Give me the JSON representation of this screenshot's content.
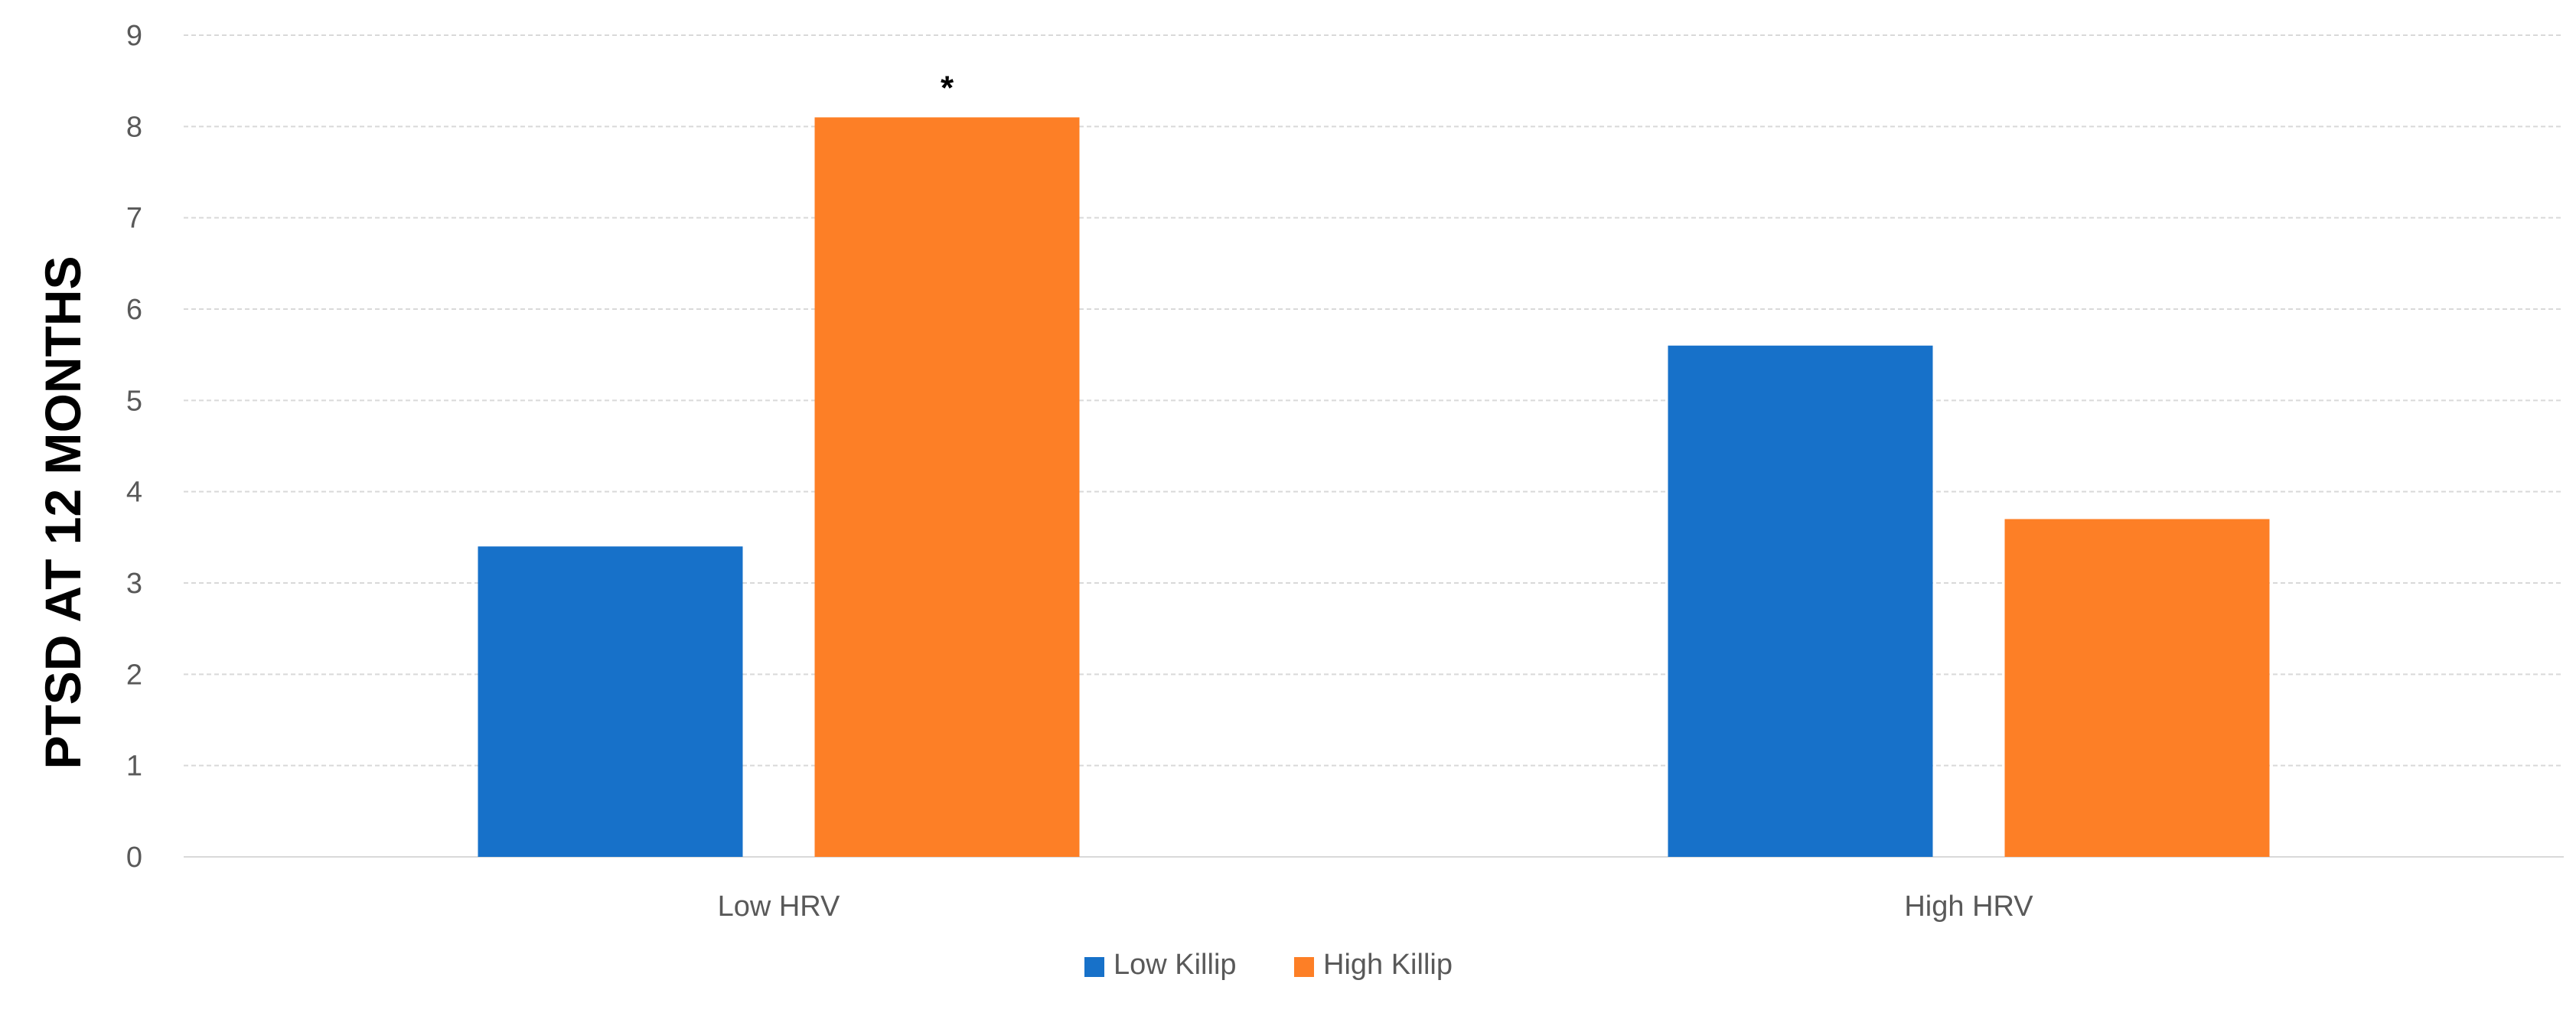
{
  "chart_data": {
    "type": "bar",
    "title": "",
    "xlabel": "",
    "ylabel": "PTSD AT 12 MONTHS",
    "categories": [
      "Low HRV",
      "High HRV"
    ],
    "series": [
      {
        "name": "Low Killip",
        "values": [
          3.4,
          5.6
        ],
        "color": "#1771c9"
      },
      {
        "name": "High Killip",
        "values": [
          8.1,
          3.7
        ],
        "color": "#fd7f26"
      }
    ],
    "ylim": [
      0,
      9
    ],
    "yticks": [
      "0",
      "1",
      "2",
      "3",
      "4",
      "5",
      "6",
      "7",
      "8",
      "9"
    ],
    "grid": true,
    "legend": "bottom-center",
    "annotations": [
      {
        "text": "*",
        "category": "Low HRV",
        "series": "High Killip"
      }
    ]
  }
}
